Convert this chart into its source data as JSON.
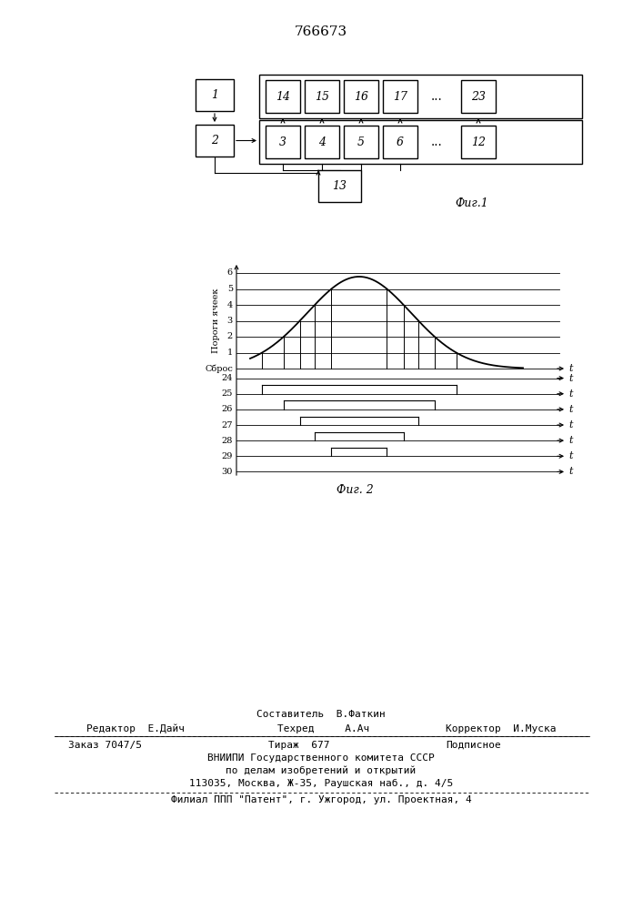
{
  "title": "766673",
  "fig1_caption": "Фиг.1",
  "fig2_caption": "Фиг. 2",
  "ylabel_fig2": "Пороги ячеек",
  "sbroc_label": "Сброс",
  "t_label": "t",
  "thresh_labels": [
    "6",
    "5",
    "4",
    "3",
    "2",
    "1",
    "Сброс"
  ],
  "row_labels": [
    "24",
    "25",
    "26",
    "27",
    "28",
    "29",
    "30"
  ],
  "footer_line1": "Составитель  В.Фаткин",
  "footer_line2_left": "Редактор  Е.Дайч",
  "footer_line2_mid": "Техред     А.Ач",
  "footer_line2_right": "Корректор  И.Муска",
  "footer_line3_left": "Заказ 7047/5",
  "footer_line3_mid": "Тираж  677",
  "footer_line3_right": "Подписное",
  "footer_line4": "ВНИИПИ Государственного комитета СССР",
  "footer_line5": "по делам изобретений и открытий",
  "footer_line6": "113035, Москва, Ж-35, Раушская наб., д. 4/5",
  "footer_line7": "Филиал ППП \"Патент\", г. Ужгород, ул. Проектная, 4",
  "bg_color": "#ffffff",
  "line_color": "#000000"
}
